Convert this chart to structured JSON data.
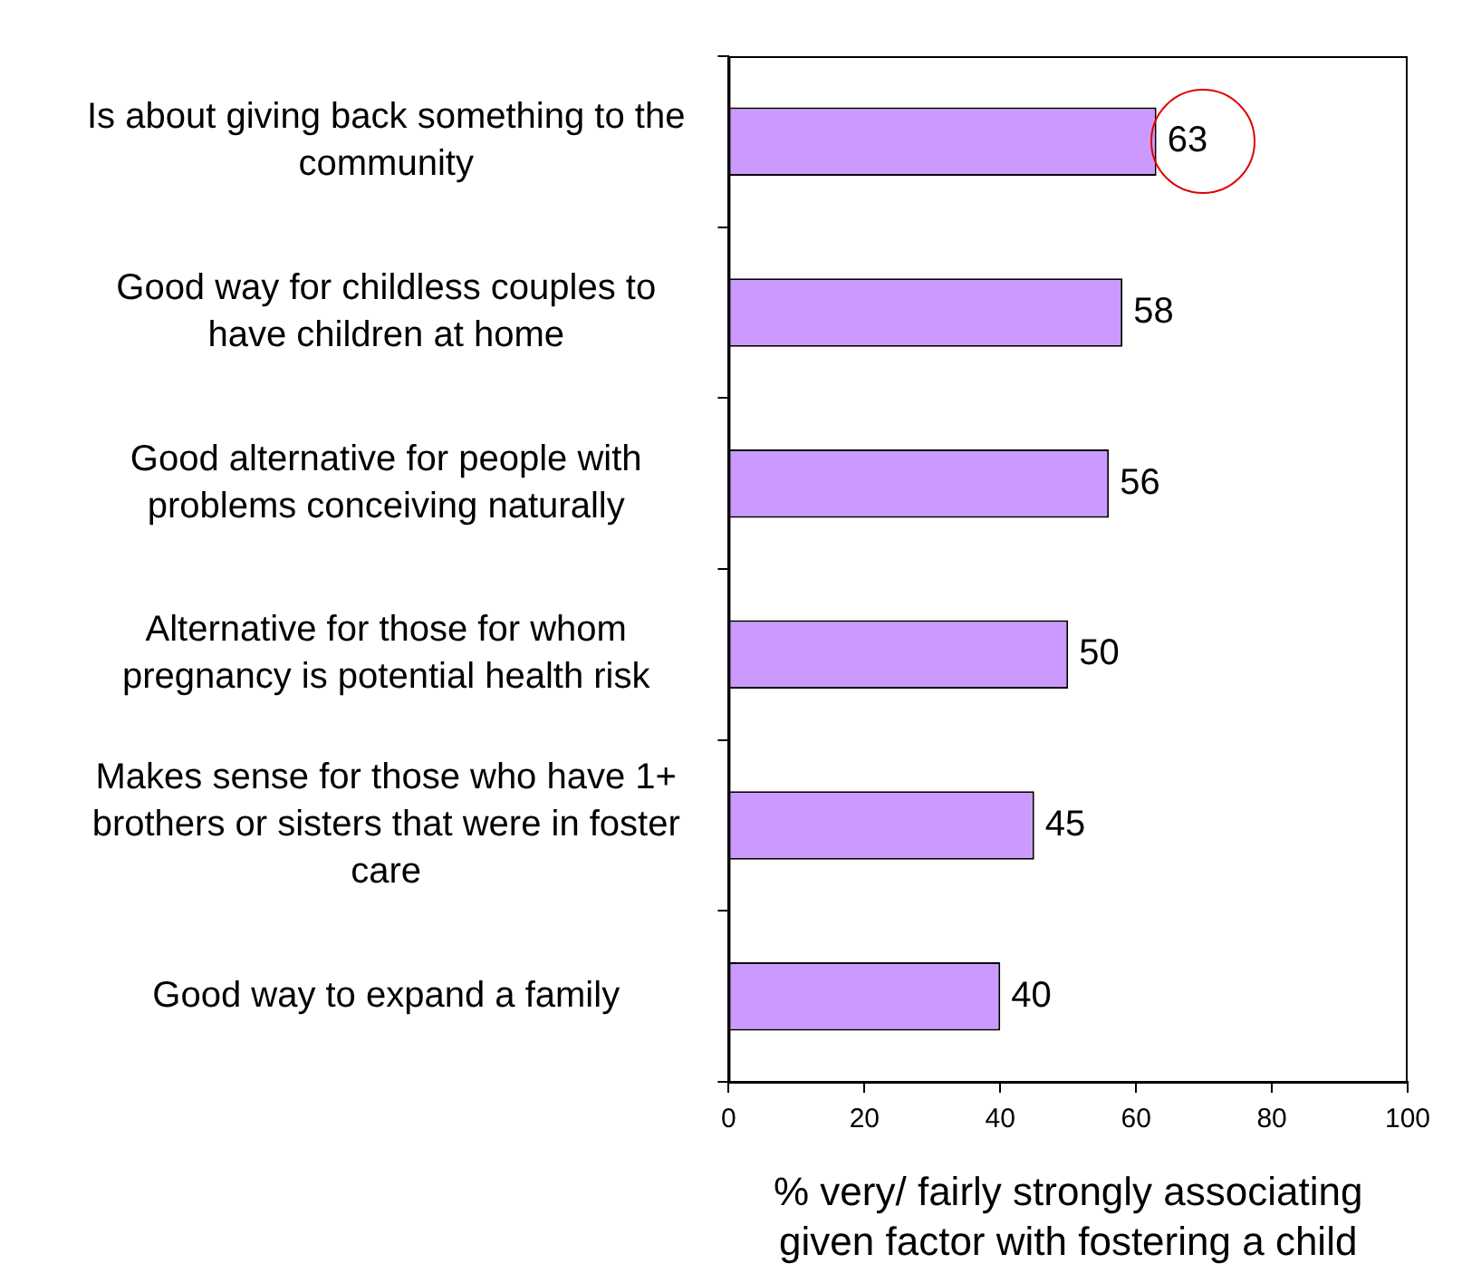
{
  "chart_data": {
    "type": "bar",
    "orientation": "horizontal",
    "categories": [
      "Is about giving back something to the community",
      "Good way for childless couples to have children at home",
      "Good alternative for people with problems conceiving naturally",
      "Alternative for those for whom pregnancy is potential health risk",
      "Makes sense for those who have 1+ brothers or sisters that were in foster care",
      "Good way to expand a family"
    ],
    "values": [
      63,
      58,
      56,
      50,
      45,
      40
    ],
    "color": "#cc99ff",
    "xlim": [
      0,
      100
    ],
    "xticks": [
      0,
      20,
      40,
      60,
      80,
      100
    ],
    "xlabel": "% very/ fairly strongly associating given factor with fostering a child",
    "data_labels": true,
    "grid": false,
    "legend": false
  }
}
